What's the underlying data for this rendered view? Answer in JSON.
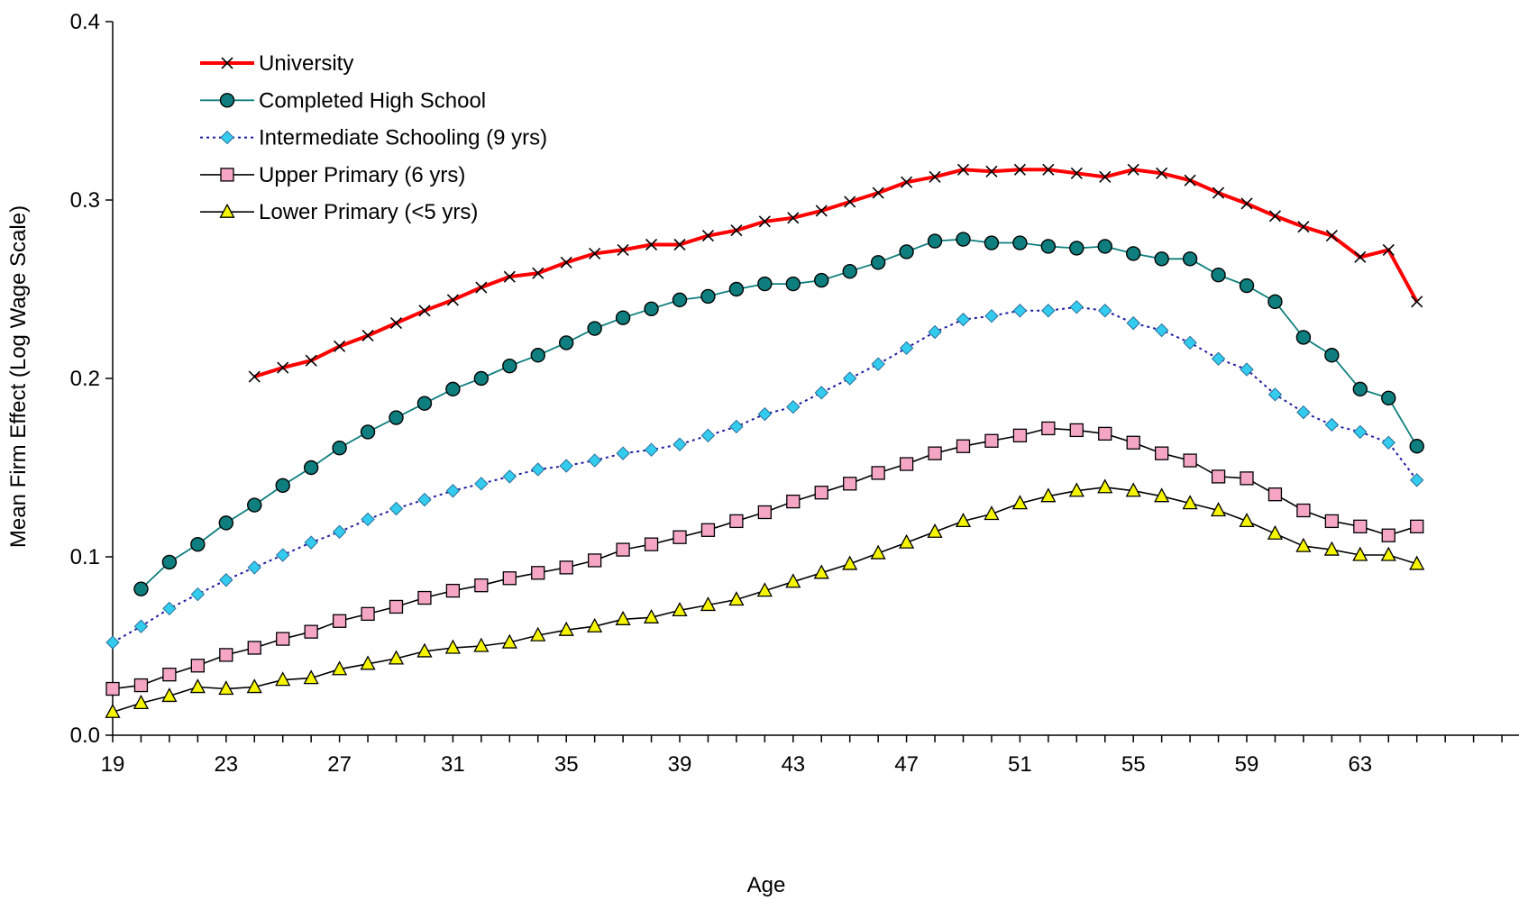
{
  "chart_data": {
    "type": "line",
    "title": "",
    "xlabel": "Age",
    "ylabel": "Mean Firm Effect (Log Wage Scale)",
    "ylim": [
      0.0,
      0.4
    ],
    "xlim": [
      19,
      65
    ],
    "y_ticks": [
      "0.0",
      "0.1",
      "0.2",
      "0.3",
      "0.4"
    ],
    "x_ticks": [
      "19",
      "23",
      "27",
      "31",
      "35",
      "39",
      "43",
      "47",
      "51",
      "55",
      "59",
      "63"
    ],
    "grid": false,
    "legend_position": "top-left",
    "series": [
      {
        "name": "University",
        "color": "#ff0000",
        "marker": "x-mark",
        "line": "solid-thick",
        "x": [
          24,
          25,
          26,
          27,
          28,
          29,
          30,
          31,
          32,
          33,
          34,
          35,
          36,
          37,
          38,
          39,
          40,
          41,
          42,
          43,
          44,
          45,
          46,
          47,
          48,
          49,
          50,
          51,
          52,
          53,
          54,
          55,
          56,
          57,
          58,
          59,
          60,
          61,
          62,
          63,
          64,
          65
        ],
        "values": [
          0.201,
          0.206,
          0.21,
          0.218,
          0.224,
          0.231,
          0.238,
          0.244,
          0.251,
          0.257,
          0.259,
          0.265,
          0.27,
          0.272,
          0.275,
          0.275,
          0.28,
          0.283,
          0.288,
          0.29,
          0.294,
          0.299,
          0.304,
          0.31,
          0.313,
          0.317,
          0.316,
          0.317,
          0.317,
          0.315,
          0.313,
          0.317,
          0.315,
          0.311,
          0.304,
          0.298,
          0.291,
          0.285,
          0.28,
          0.268,
          0.272,
          0.243
        ]
      },
      {
        "name": "Completed High School",
        "color": "#0e7e7e",
        "marker": "circle",
        "line": "solid",
        "x": [
          20,
          21,
          22,
          23,
          24,
          25,
          26,
          27,
          28,
          29,
          30,
          31,
          32,
          33,
          34,
          35,
          36,
          37,
          38,
          39,
          40,
          41,
          42,
          43,
          44,
          45,
          46,
          47,
          48,
          49,
          50,
          51,
          52,
          53,
          54,
          55,
          56,
          57,
          58,
          59,
          60,
          61,
          62,
          63,
          64,
          65
        ],
        "values": [
          0.082,
          0.097,
          0.107,
          0.119,
          0.129,
          0.14,
          0.15,
          0.161,
          0.17,
          0.178,
          0.186,
          0.194,
          0.2,
          0.207,
          0.213,
          0.22,
          0.228,
          0.234,
          0.239,
          0.244,
          0.246,
          0.25,
          0.253,
          0.253,
          0.255,
          0.26,
          0.265,
          0.271,
          0.277,
          0.278,
          0.276,
          0.276,
          0.274,
          0.273,
          0.274,
          0.27,
          0.267,
          0.267,
          0.258,
          0.252,
          0.243,
          0.223,
          0.213,
          0.194,
          0.189,
          0.162
        ]
      },
      {
        "name": "Intermediate Schooling (9 yrs)",
        "color": "#1c1ca0",
        "marker_fill": "#33ccee",
        "marker": "diamond",
        "line": "dotted",
        "x": [
          19,
          20,
          21,
          22,
          23,
          24,
          25,
          26,
          27,
          28,
          29,
          30,
          31,
          32,
          33,
          34,
          35,
          36,
          37,
          38,
          39,
          40,
          41,
          42,
          43,
          44,
          45,
          46,
          47,
          48,
          49,
          50,
          51,
          52,
          53,
          54,
          55,
          56,
          57,
          58,
          59,
          60,
          61,
          62,
          63,
          64,
          65
        ],
        "values": [
          0.052,
          0.061,
          0.071,
          0.079,
          0.087,
          0.094,
          0.101,
          0.108,
          0.114,
          0.121,
          0.127,
          0.132,
          0.137,
          0.141,
          0.145,
          0.149,
          0.151,
          0.154,
          0.158,
          0.16,
          0.163,
          0.168,
          0.173,
          0.18,
          0.184,
          0.192,
          0.2,
          0.208,
          0.217,
          0.226,
          0.233,
          0.235,
          0.238,
          0.238,
          0.24,
          0.238,
          0.231,
          0.227,
          0.22,
          0.211,
          0.205,
          0.191,
          0.181,
          0.174,
          0.17,
          0.164,
          0.143
        ]
      },
      {
        "name": "Upper Primary (6 yrs)",
        "color": "#000000",
        "marker_fill": "#f4a6c4",
        "marker": "square",
        "line": "solid",
        "x": [
          19,
          20,
          21,
          22,
          23,
          24,
          25,
          26,
          27,
          28,
          29,
          30,
          31,
          32,
          33,
          34,
          35,
          36,
          37,
          38,
          39,
          40,
          41,
          42,
          43,
          44,
          45,
          46,
          47,
          48,
          49,
          50,
          51,
          52,
          53,
          54,
          55,
          56,
          57,
          58,
          59,
          60,
          61,
          62,
          63,
          64,
          65
        ],
        "values": [
          0.026,
          0.028,
          0.034,
          0.039,
          0.045,
          0.049,
          0.054,
          0.058,
          0.064,
          0.068,
          0.072,
          0.077,
          0.081,
          0.084,
          0.088,
          0.091,
          0.094,
          0.098,
          0.104,
          0.107,
          0.111,
          0.115,
          0.12,
          0.125,
          0.131,
          0.136,
          0.141,
          0.147,
          0.152,
          0.158,
          0.162,
          0.165,
          0.168,
          0.172,
          0.171,
          0.169,
          0.164,
          0.158,
          0.154,
          0.145,
          0.144,
          0.135,
          0.126,
          0.12,
          0.117,
          0.112,
          0.117
        ]
      },
      {
        "name": "Lower Primary (<5 yrs)",
        "color": "#000000",
        "marker_fill": "#f5f500",
        "marker": "triangle",
        "line": "solid",
        "x": [
          19,
          20,
          21,
          22,
          23,
          24,
          25,
          26,
          27,
          28,
          29,
          30,
          31,
          32,
          33,
          34,
          35,
          36,
          37,
          38,
          39,
          40,
          41,
          42,
          43,
          44,
          45,
          46,
          47,
          48,
          49,
          50,
          51,
          52,
          53,
          54,
          55,
          56,
          57,
          58,
          59,
          60,
          61,
          62,
          63,
          64,
          65
        ],
        "values": [
          0.013,
          0.018,
          0.022,
          0.027,
          0.026,
          0.027,
          0.031,
          0.032,
          0.037,
          0.04,
          0.043,
          0.047,
          0.049,
          0.05,
          0.052,
          0.056,
          0.059,
          0.061,
          0.065,
          0.066,
          0.07,
          0.073,
          0.076,
          0.081,
          0.086,
          0.091,
          0.096,
          0.102,
          0.108,
          0.114,
          0.12,
          0.124,
          0.13,
          0.134,
          0.137,
          0.139,
          0.137,
          0.134,
          0.13,
          0.126,
          0.12,
          0.113,
          0.106,
          0.104,
          0.101,
          0.101,
          0.096
        ]
      }
    ]
  }
}
